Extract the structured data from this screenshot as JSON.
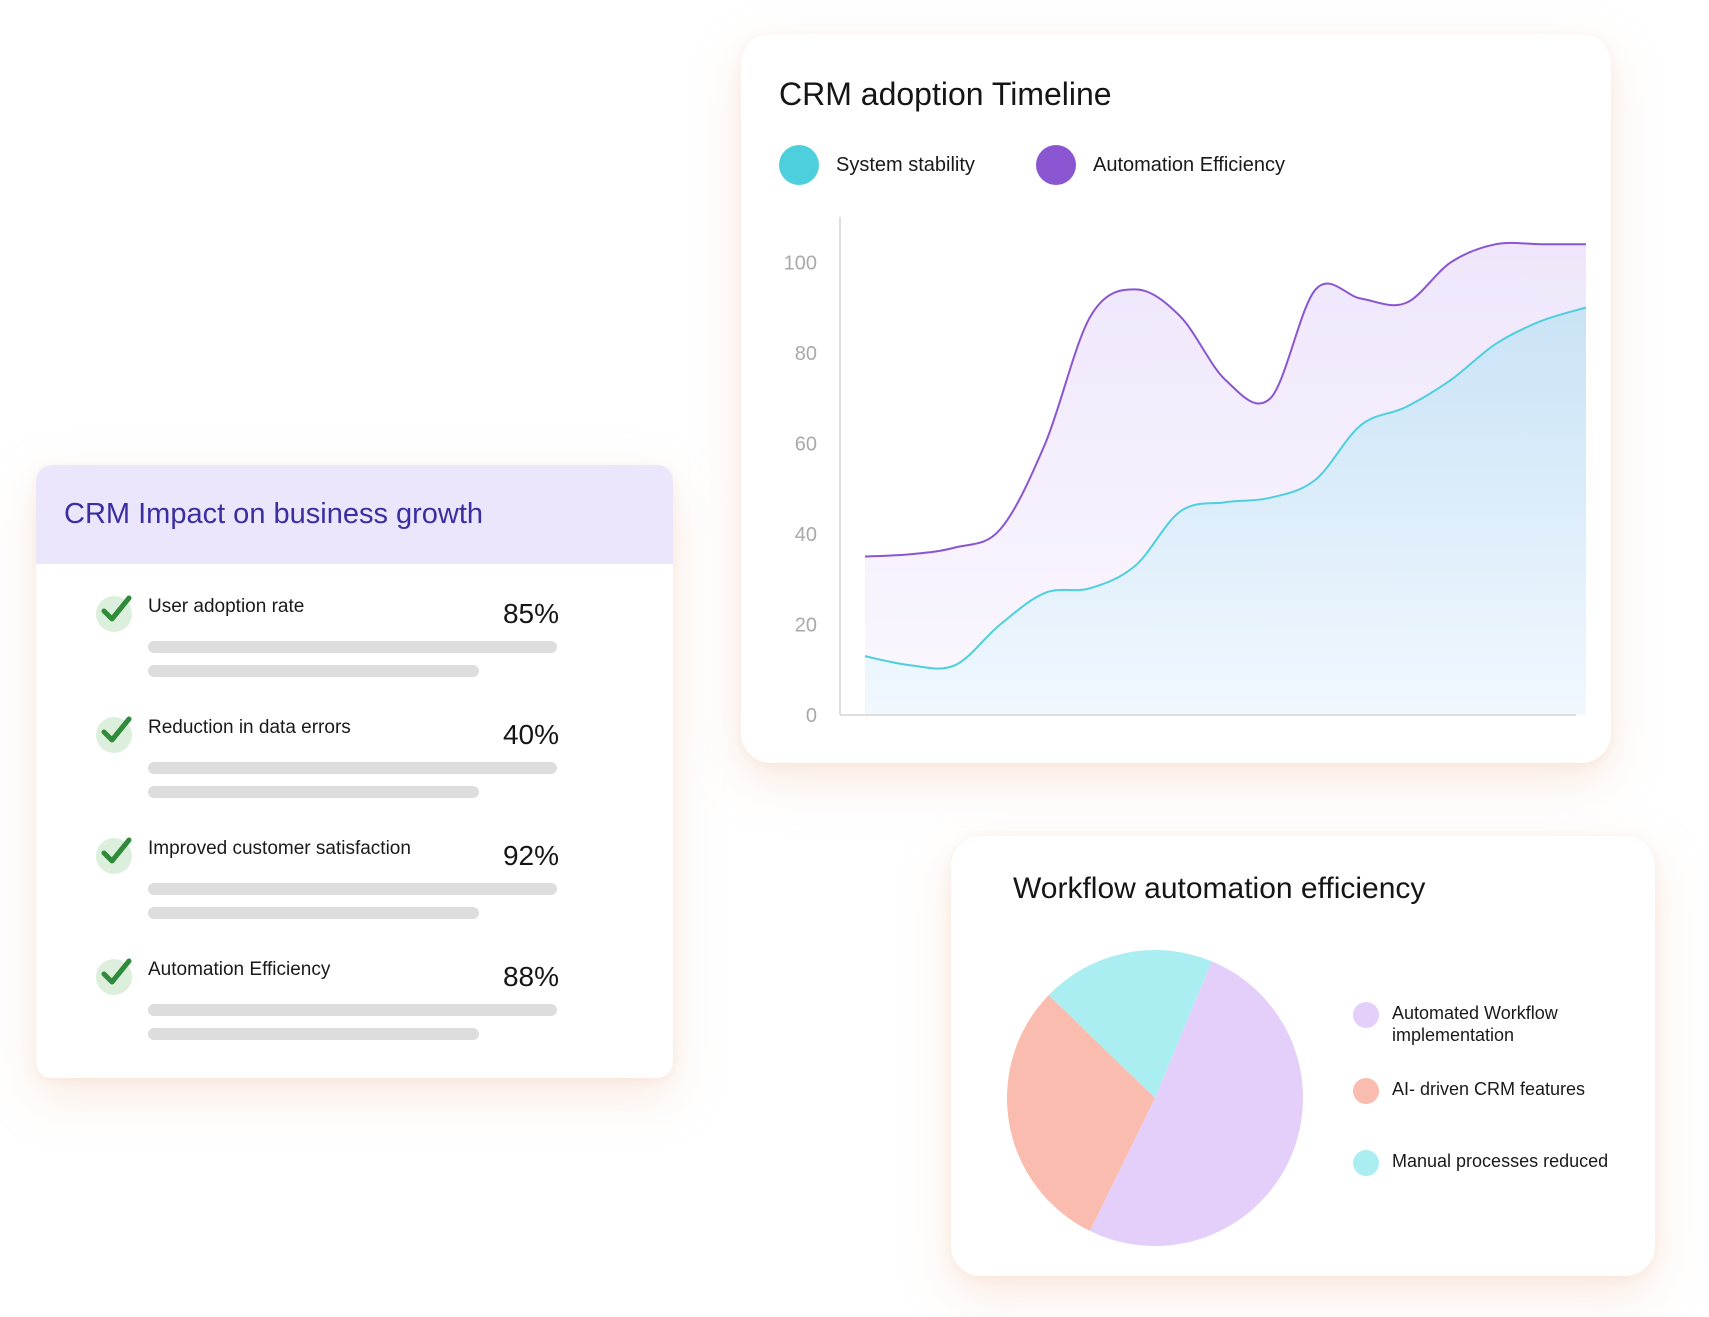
{
  "impact": {
    "title": "CRM Impact on business growth",
    "metrics": [
      {
        "label": "User adoption rate",
        "value": "85%"
      },
      {
        "label": "Reduction in data errors",
        "value": "40%"
      },
      {
        "label": "Improved customer satisfaction",
        "value": "92%"
      },
      {
        "label": "Automation Efficiency",
        "value": "88%"
      }
    ],
    "check_icon": "check-icon"
  },
  "timeline": {
    "title": "CRM adoption Timeline",
    "legend": [
      {
        "label": "System  stability",
        "color": "#4ecfdd"
      },
      {
        "label": "Automation Efficiency",
        "color": "#8a55d1"
      }
    ]
  },
  "workflow": {
    "title": "Workflow automation efficiency",
    "legend": [
      {
        "label": "Automated Workflow implementation",
        "color": "#e3cffa"
      },
      {
        "label": "AI- driven CRM features",
        "color": "#fabcae"
      },
      {
        "label": "Manual processes reduced",
        "color": "#aaeef2"
      }
    ]
  },
  "chart_data": [
    {
      "type": "area",
      "title": "CRM adoption Timeline",
      "xlabel": "",
      "ylabel": "",
      "ylim": [
        0,
        110
      ],
      "y_ticks": [
        0,
        20,
        40,
        60,
        80,
        100
      ],
      "grid": false,
      "legend_position": "top-left",
      "x": [
        0,
        1,
        2,
        3,
        4,
        5,
        6,
        7,
        8,
        9,
        10,
        11,
        12,
        13,
        14,
        15,
        16
      ],
      "series": [
        {
          "name": "Automation Efficiency",
          "color": "#8a55d1",
          "values": [
            35,
            35.5,
            37,
            41,
            60,
            88,
            94,
            88,
            74,
            70,
            94,
            92,
            91,
            100,
            104,
            104,
            104
          ]
        },
        {
          "name": "System  stability",
          "color": "#4ecfdd",
          "values": [
            13,
            11,
            11,
            20,
            27,
            28,
            33,
            45,
            47,
            48,
            52,
            64,
            68,
            74,
            82,
            87,
            90
          ]
        }
      ]
    },
    {
      "type": "pie",
      "title": "Workflow automation efficiency",
      "categories": [
        "Automated Workflow implementation",
        "AI- driven CRM features",
        "Manual processes reduced"
      ],
      "values": [
        51,
        30,
        19
      ],
      "colors": [
        "#e3cffa",
        "#fabcae",
        "#aaeef2"
      ],
      "legend_position": "right"
    }
  ]
}
